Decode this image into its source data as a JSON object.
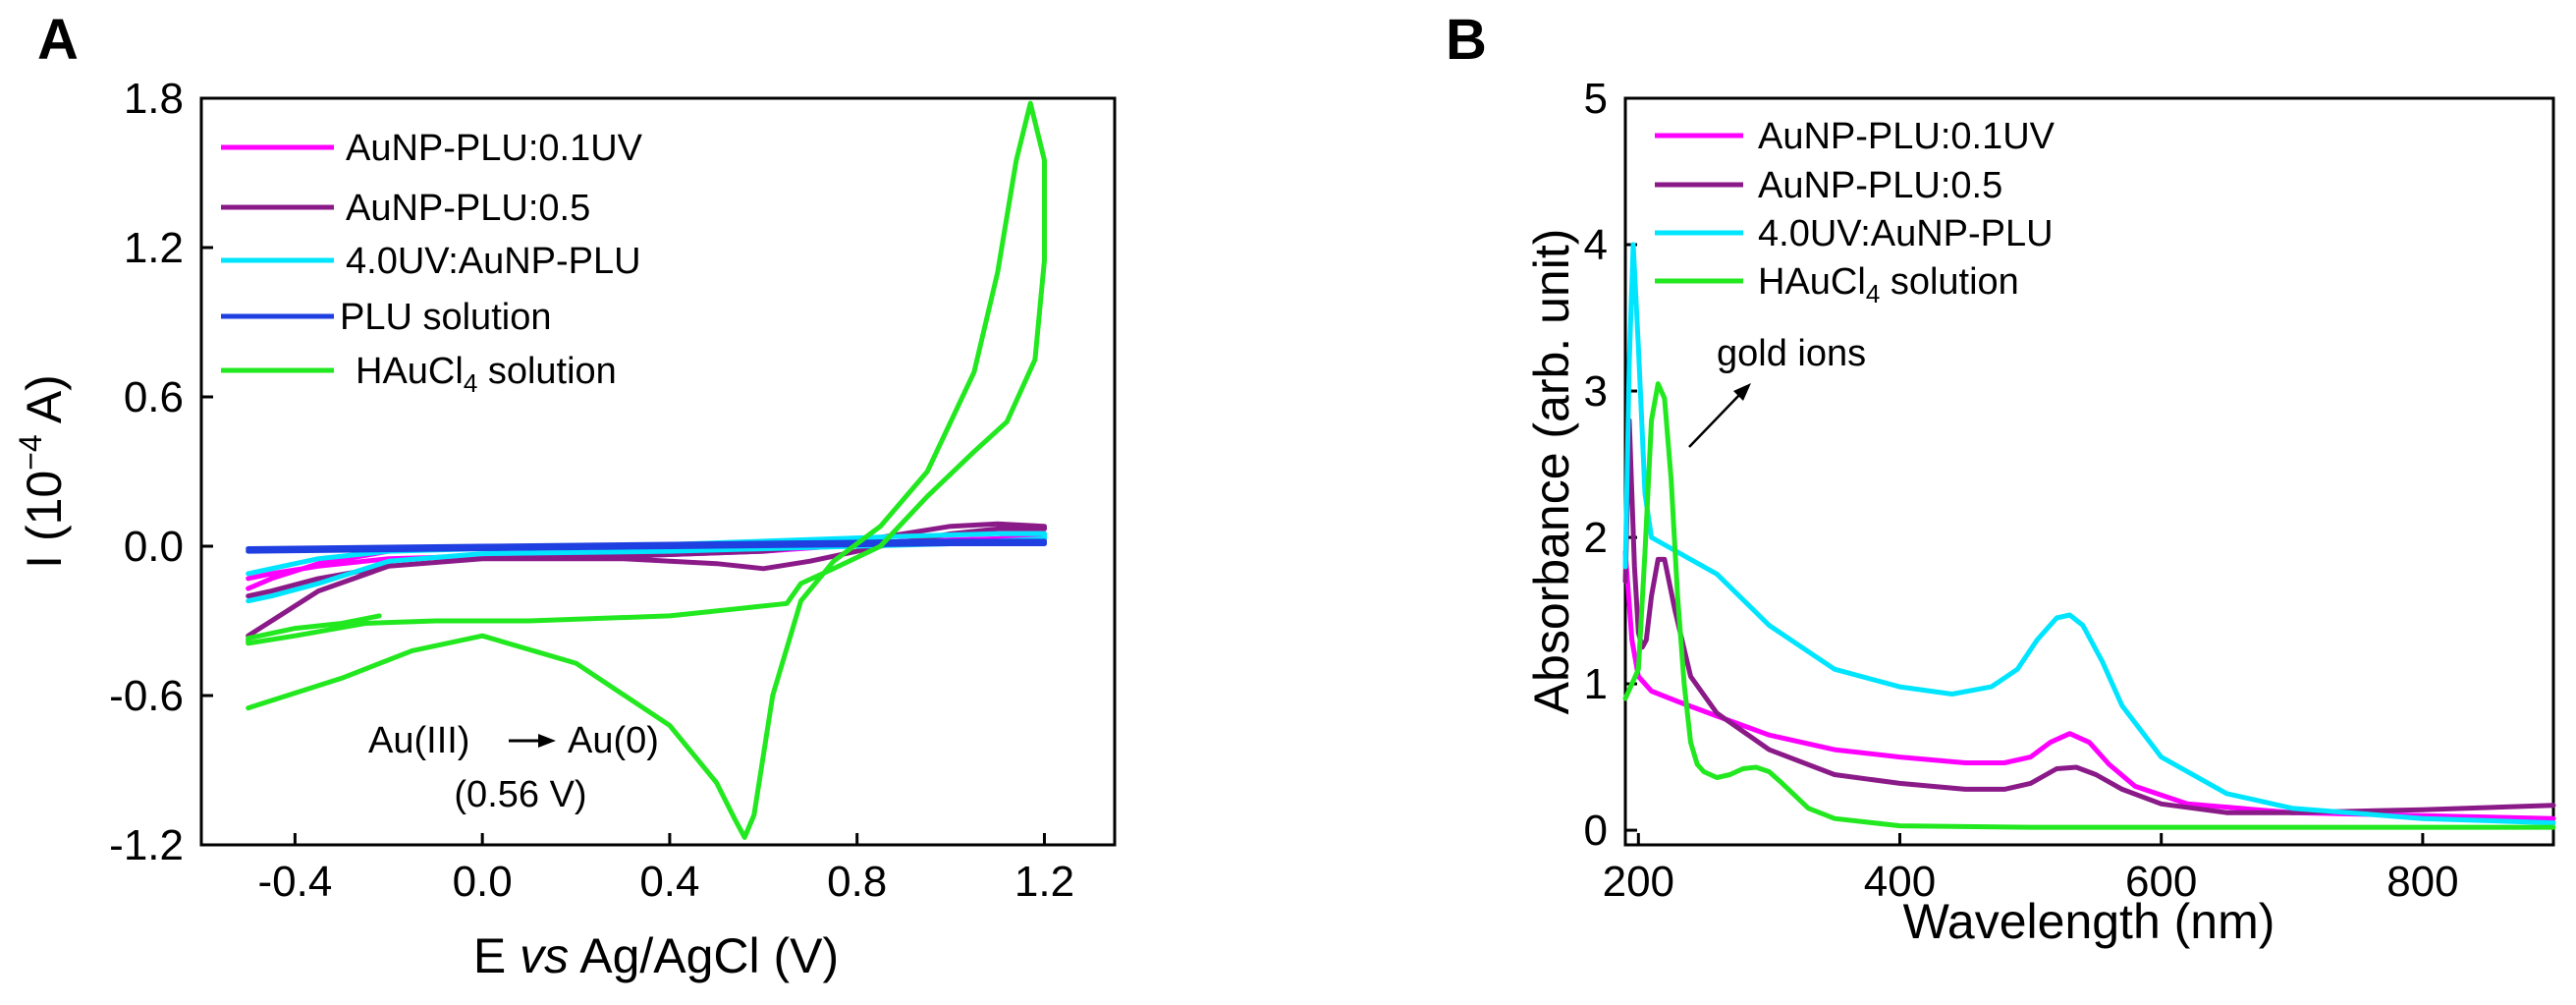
{
  "chart_data": [
    {
      "panel": "A",
      "type": "line",
      "xlabel_parts": {
        "E": "E",
        "vs": "vs",
        "rest": "Ag/AgCl (V)"
      },
      "ylabel_parts": {
        "base": "I (10",
        "exp": "−4",
        "unit": " A)"
      },
      "xlim": [
        -0.6,
        1.35
      ],
      "ylim": [
        -1.2,
        1.8
      ],
      "xticks": [
        -0.4,
        0.0,
        0.4,
        0.8,
        1.2
      ],
      "xtick_labels": [
        "-0.4",
        "0.0",
        "0.4",
        "0.8",
        "1.2"
      ],
      "yticks": [
        -1.2,
        -0.6,
        0.0,
        0.6,
        1.2,
        1.8
      ],
      "ytick_labels": [
        "-1.2",
        "-0.6",
        "0.0",
        "0.6",
        "1.2",
        "1.8"
      ],
      "annotation": {
        "line1_left": "Au(III)",
        "line1_right": "Au(0)",
        "line2": "(0.56 V)"
      },
      "legend_location": "top-left",
      "series": [
        {
          "name": "AuNP-PLU:0.1UV",
          "label": {
            "main": "AuNP-PLU:0.1UV"
          },
          "color": "#ff00ff",
          "x": [
            -0.5,
            -0.45,
            -0.35,
            -0.2,
            0.0,
            0.3,
            0.6,
            0.9,
            1.1,
            1.2,
            1.2,
            1.1,
            0.9,
            0.6,
            0.3,
            0.0,
            -0.2,
            -0.35,
            -0.45,
            -0.5
          ],
          "y": [
            -0.17,
            -0.13,
            -0.07,
            -0.02,
            0.0,
            0.0,
            0.0,
            0.01,
            0.02,
            0.03,
            0.05,
            0.03,
            0.02,
            -0.02,
            -0.04,
            -0.04,
            -0.05,
            -0.08,
            -0.11,
            -0.13
          ]
        },
        {
          "name": "AuNP-PLU:0.5",
          "label": {
            "main": "AuNP-PLU:0.5"
          },
          "color": "#8b1a89",
          "x": [
            -0.5,
            -0.45,
            -0.35,
            -0.2,
            0.0,
            0.3,
            0.5,
            0.6,
            0.7,
            0.85,
            1.0,
            1.1,
            1.2,
            1.2,
            1.1,
            1.0,
            0.8,
            0.6,
            0.3,
            0.0,
            -0.2,
            -0.35,
            -0.45,
            -0.5
          ],
          "y": [
            -0.36,
            -0.3,
            -0.18,
            -0.08,
            -0.05,
            -0.05,
            -0.07,
            -0.09,
            -0.06,
            0.0,
            0.05,
            0.07,
            0.07,
            0.08,
            0.09,
            0.08,
            0.02,
            -0.02,
            -0.04,
            -0.05,
            -0.08,
            -0.13,
            -0.18,
            -0.2
          ]
        },
        {
          "name": "4.0UV:AuNP-PLU",
          "label": {
            "main": "4.0UV:AuNP-PLU"
          },
          "color": "#00e5ff",
          "x": [
            -0.5,
            -0.45,
            -0.35,
            -0.2,
            0.0,
            0.4,
            0.8,
            1.0,
            1.1,
            1.2,
            1.2,
            1.1,
            0.9,
            0.6,
            0.3,
            0.0,
            -0.2,
            -0.35,
            -0.45,
            -0.5
          ],
          "y": [
            -0.22,
            -0.2,
            -0.15,
            -0.06,
            -0.03,
            -0.02,
            0.0,
            0.01,
            0.02,
            0.03,
            0.05,
            0.05,
            0.04,
            0.02,
            0.0,
            -0.01,
            -0.02,
            -0.05,
            -0.09,
            -0.11
          ]
        },
        {
          "name": "PLU solution",
          "label": {
            "main": "PLU solution"
          },
          "color": "#1f3fe0",
          "x": [
            -0.5,
            0.0,
            0.5,
            1.0,
            1.2,
            1.2,
            1.0,
            0.5,
            0.0,
            -0.5
          ],
          "y": [
            -0.02,
            -0.01,
            0.0,
            0.01,
            0.01,
            0.02,
            0.02,
            0.01,
            0.0,
            -0.01
          ]
        },
        {
          "name": "HAuCl4 solution",
          "label": {
            "main": "HAuCl",
            "sub": "4",
            "tail": " solution"
          },
          "color": "#22e81f",
          "x": [
            -0.5,
            -0.3,
            -0.15,
            0.0,
            0.2,
            0.4,
            0.5,
            0.54,
            0.56,
            0.58,
            0.62,
            0.68,
            0.75,
            0.85,
            0.95,
            1.05,
            1.1,
            1.14,
            1.17,
            1.2,
            1.2,
            1.18,
            1.12,
            1.05,
            0.95,
            0.85,
            0.75,
            0.68,
            0.65,
            0.4,
            0.1,
            -0.1,
            -0.25,
            -0.4,
            -0.5,
            -0.5,
            -0.4,
            -0.3,
            -0.22
          ],
          "y": [
            -0.65,
            -0.53,
            -0.42,
            -0.36,
            -0.47,
            -0.72,
            -0.95,
            -1.1,
            -1.17,
            -1.08,
            -0.6,
            -0.22,
            -0.06,
            0.08,
            0.3,
            0.7,
            1.1,
            1.55,
            1.78,
            1.55,
            1.15,
            0.75,
            0.5,
            0.38,
            0.2,
            0.0,
            -0.09,
            -0.15,
            -0.23,
            -0.28,
            -0.3,
            -0.3,
            -0.31,
            -0.36,
            -0.39,
            -0.37,
            -0.33,
            -0.31,
            -0.28
          ]
        }
      ]
    },
    {
      "panel": "B",
      "type": "line",
      "xlabel": "Wavelength (nm)",
      "ylabel": "Absorbance (arb. unit)",
      "xlim": [
        190,
        900
      ],
      "ylim": [
        -0.1,
        5.0
      ],
      "xticks": [
        200,
        400,
        600,
        800
      ],
      "xtick_labels": [
        "200",
        "400",
        "600",
        "800"
      ],
      "yticks": [
        0,
        1,
        2,
        3,
        4,
        5
      ],
      "ytick_labels": [
        "0",
        "1",
        "2",
        "3",
        "4",
        "5"
      ],
      "annotation": {
        "text": "gold ions",
        "points_to_x": 220,
        "points_to_y": 2.8
      },
      "legend_location": "top-left",
      "series": [
        {
          "name": "AuNP-PLU:0.1UV",
          "label": {
            "main": "AuNP-PLU:0.1UV"
          },
          "color": "#ff00ff",
          "x": [
            190,
            195,
            200,
            210,
            230,
            260,
            300,
            350,
            400,
            450,
            480,
            500,
            515,
            530,
            545,
            560,
            580,
            620,
            700,
            800,
            900
          ],
          "y": [
            1.9,
            1.3,
            1.05,
            0.95,
            0.88,
            0.78,
            0.65,
            0.55,
            0.5,
            0.46,
            0.46,
            0.5,
            0.6,
            0.66,
            0.6,
            0.45,
            0.3,
            0.18,
            0.12,
            0.1,
            0.08
          ]
        },
        {
          "name": "AuNP-PLU:0.5",
          "label": {
            "main": "AuNP-PLU:0.5"
          },
          "color": "#8b1a89",
          "x": [
            190,
            193,
            197,
            200,
            203,
            206,
            210,
            215,
            220,
            228,
            240,
            260,
            300,
            350,
            400,
            450,
            480,
            500,
            520,
            535,
            550,
            570,
            600,
            650,
            700,
            800,
            900
          ],
          "y": [
            1.7,
            2.8,
            1.8,
            1.35,
            1.25,
            1.3,
            1.6,
            1.85,
            1.85,
            1.5,
            1.05,
            0.8,
            0.55,
            0.38,
            0.32,
            0.28,
            0.28,
            0.32,
            0.42,
            0.43,
            0.38,
            0.28,
            0.18,
            0.12,
            0.12,
            0.14,
            0.17
          ]
        },
        {
          "name": "4.0UV:AuNP-PLU",
          "label": {
            "main": "4.0UV:AuNP-PLU"
          },
          "color": "#00e5ff",
          "x": [
            190,
            193,
            196,
            200,
            205,
            210,
            220,
            240,
            260,
            300,
            350,
            400,
            440,
            470,
            490,
            505,
            520,
            530,
            540,
            555,
            570,
            600,
            650,
            700,
            800,
            900
          ],
          "y": [
            1.8,
            3.2,
            4.0,
            3.3,
            2.3,
            2.0,
            1.95,
            1.85,
            1.75,
            1.4,
            1.1,
            0.98,
            0.93,
            0.98,
            1.1,
            1.3,
            1.45,
            1.47,
            1.4,
            1.15,
            0.85,
            0.5,
            0.25,
            0.15,
            0.08,
            0.05
          ]
        },
        {
          "name": "HAuCl4 solution",
          "label": {
            "main": "HAuCl",
            "sub": "4",
            "tail": " solution"
          },
          "color": "#22e81f",
          "x": [
            190,
            195,
            200,
            205,
            210,
            215,
            220,
            225,
            230,
            235,
            240,
            245,
            250,
            260,
            270,
            280,
            290,
            300,
            310,
            330,
            350,
            400,
            500,
            600,
            700,
            800,
            900
          ],
          "y": [
            0.9,
            1.0,
            1.1,
            1.9,
            2.8,
            3.05,
            2.95,
            2.4,
            1.6,
            1.0,
            0.6,
            0.45,
            0.4,
            0.36,
            0.38,
            0.42,
            0.43,
            0.4,
            0.32,
            0.15,
            0.08,
            0.03,
            0.02,
            0.02,
            0.02,
            0.02,
            0.02
          ]
        }
      ]
    }
  ],
  "panels": {
    "a": {
      "letter": "A"
    },
    "b": {
      "letter": "B"
    }
  }
}
